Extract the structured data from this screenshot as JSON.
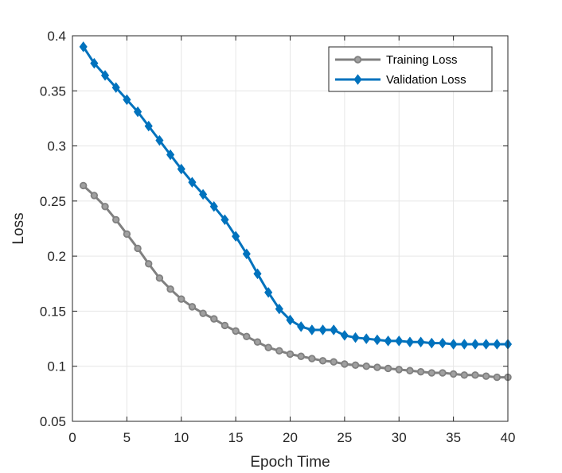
{
  "chart_data": {
    "type": "line",
    "title": "",
    "xlabel": "Epoch Time",
    "ylabel": "Loss",
    "xlim": [
      0,
      40
    ],
    "ylim": [
      0.05,
      0.4
    ],
    "xticks": [
      0,
      5,
      10,
      15,
      20,
      25,
      30,
      35,
      40
    ],
    "xtick_labels": [
      "0",
      "5",
      "10",
      "15",
      "20",
      "25",
      "30",
      "35",
      "40"
    ],
    "yticks": [
      0.05,
      0.1,
      0.15,
      0.2,
      0.25,
      0.3,
      0.35,
      0.4
    ],
    "ytick_labels": [
      "0.05",
      "0.1",
      "0.15",
      "0.2",
      "0.25",
      "0.3",
      "0.35",
      "0.4"
    ],
    "grid": true,
    "legend_position": "top-right",
    "x": [
      1,
      2,
      3,
      4,
      5,
      6,
      7,
      8,
      9,
      10,
      11,
      12,
      13,
      14,
      15,
      16,
      17,
      18,
      19,
      20,
      21,
      22,
      23,
      24,
      25,
      26,
      27,
      28,
      29,
      30,
      31,
      32,
      33,
      34,
      35,
      36,
      37,
      38,
      39,
      40
    ],
    "series": [
      {
        "name": "Training Loss",
        "color": "#808080",
        "marker": "circle",
        "values": [
          0.264,
          0.255,
          0.245,
          0.233,
          0.22,
          0.207,
          0.193,
          0.18,
          0.17,
          0.161,
          0.154,
          0.148,
          0.143,
          0.137,
          0.132,
          0.127,
          0.122,
          0.117,
          0.114,
          0.111,
          0.109,
          0.107,
          0.105,
          0.104,
          0.102,
          0.101,
          0.1,
          0.099,
          0.098,
          0.097,
          0.096,
          0.095,
          0.094,
          0.094,
          0.093,
          0.092,
          0.092,
          0.091,
          0.09,
          0.09
        ]
      },
      {
        "name": "Validation Loss",
        "color": "#0072BD",
        "marker": "diamond",
        "values": [
          0.39,
          0.375,
          0.364,
          0.353,
          0.342,
          0.331,
          0.318,
          0.305,
          0.292,
          0.279,
          0.267,
          0.256,
          0.245,
          0.233,
          0.218,
          0.202,
          0.184,
          0.167,
          0.152,
          0.142,
          0.136,
          0.133,
          0.133,
          0.133,
          0.128,
          0.126,
          0.125,
          0.124,
          0.123,
          0.123,
          0.122,
          0.122,
          0.121,
          0.121,
          0.12,
          0.12,
          0.12,
          0.12,
          0.12,
          0.12
        ]
      }
    ]
  }
}
